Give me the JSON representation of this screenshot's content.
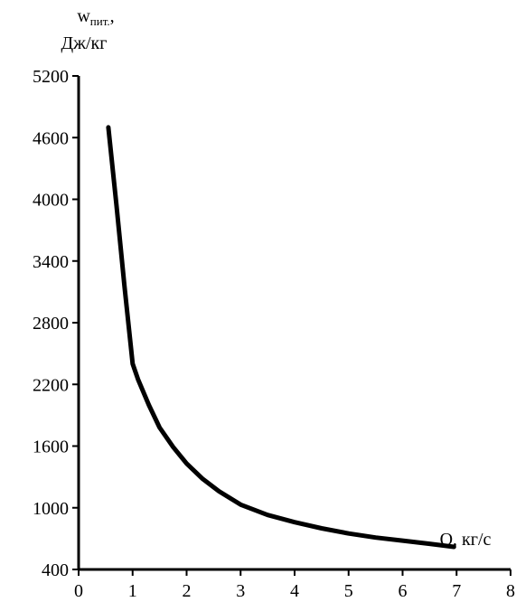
{
  "chart_data": {
    "type": "line",
    "ylabel_main": "w",
    "ylabel_sub": "пит.",
    "ylabel_suffix": ",",
    "ylabel_unit": "Дж/кг",
    "xlabel": "Q, кг/с",
    "xlim": [
      0,
      8
    ],
    "ylim": [
      400,
      5200
    ],
    "xticks": [
      0,
      1,
      2,
      3,
      4,
      5,
      6,
      7,
      8
    ],
    "yticks": [
      400,
      1000,
      1600,
      2200,
      2800,
      3400,
      4000,
      4600,
      5200
    ],
    "grid": false,
    "series": [
      {
        "x": [
          0.55,
          0.7,
          0.85,
          1.0,
          1.1,
          1.3,
          1.5,
          1.75,
          2.0,
          2.3,
          2.6,
          3.0,
          3.5,
          4.0,
          4.5,
          5.0,
          5.5,
          6.0,
          6.5,
          6.95
        ],
        "y": [
          4700,
          3950,
          3150,
          2400,
          2250,
          2000,
          1780,
          1590,
          1430,
          1280,
          1160,
          1030,
          930,
          860,
          800,
          750,
          710,
          680,
          650,
          620
        ],
        "color": "#000000"
      }
    ]
  }
}
